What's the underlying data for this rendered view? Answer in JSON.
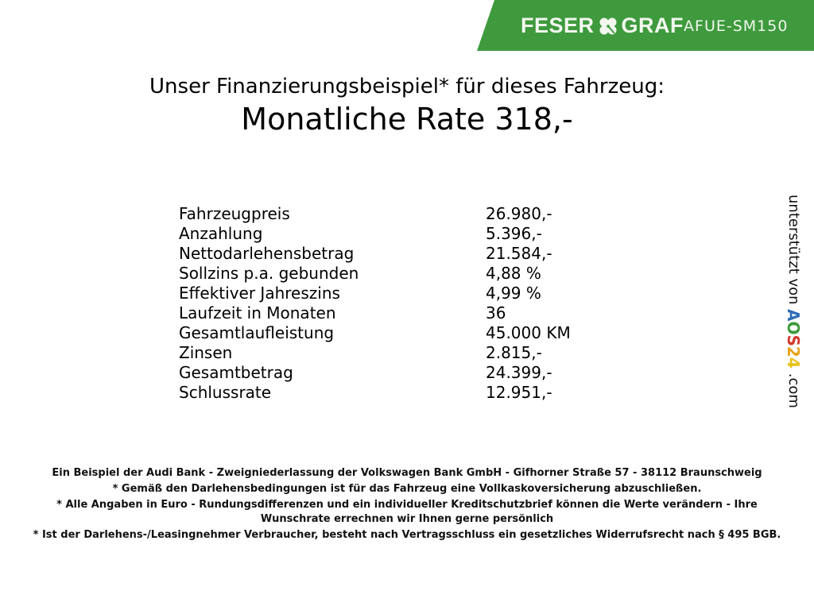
{
  "header": {
    "brand": "FESER GRAF",
    "brand_left": "FESER",
    "brand_right": "GRAF",
    "vehicle_code": "AFUE-SM150",
    "brand_color": "#3e9a3d"
  },
  "offer": {
    "subtitle": "Unser Finanzierungsbeispiel* für dieses Fahrzeug:",
    "title": "Monatliche Rate 318,-"
  },
  "details": [
    {
      "label": "Fahrzeugpreis",
      "value": "26.980,-"
    },
    {
      "label": "Anzahlung",
      "value": "5.396,-"
    },
    {
      "label": "Nettodarlehensbetrag",
      "value": "21.584,-"
    },
    {
      "label": "Sollzins p.a. gebunden",
      "value": "4,88 %"
    },
    {
      "label": "Effektiver Jahreszins",
      "value": "4,99 %"
    },
    {
      "label": "Laufzeit in Monaten",
      "value": "36"
    },
    {
      "label": "Gesamtlaufleistung",
      "value": "45.000 KM"
    },
    {
      "label": "Zinsen",
      "value": "2.815,-"
    },
    {
      "label": "Gesamtbetrag",
      "value": "24.399,-"
    },
    {
      "label": "Schlussrate",
      "value": "12.951,-"
    }
  ],
  "sidebar": {
    "supported_by": "unterstützt von",
    "aos_letters": [
      "A",
      "O",
      "S",
      "2",
      "4"
    ],
    "aos_colors": [
      "#2f6db5",
      "#3b9a3c",
      "#d23a2e",
      "#e9a21c",
      "#e8c21c"
    ],
    "domain_suffix": ".com"
  },
  "footer": [
    "Ein Beispiel der Audi Bank - Zweigniederlassung der Volkswagen Bank GmbH - Gifhorner Straße 57 - 38112 Braunschweig",
    "* Gemäß den Darlehensbedingungen ist für das Fahrzeug eine Vollkaskoversicherung abzuschließen.",
    "* Alle Angaben in Euro - Rundungsdifferenzen und ein individueller Kreditschutzbrief können die Werte verändern - Ihre Wunschrate errechnen wir Ihnen gerne persönlich",
    "* Ist der Darlehens-/Leasingnehmer Verbraucher, besteht nach Vertragsschluss ein gesetzliches Widerrufsrecht nach § 495 BGB."
  ]
}
